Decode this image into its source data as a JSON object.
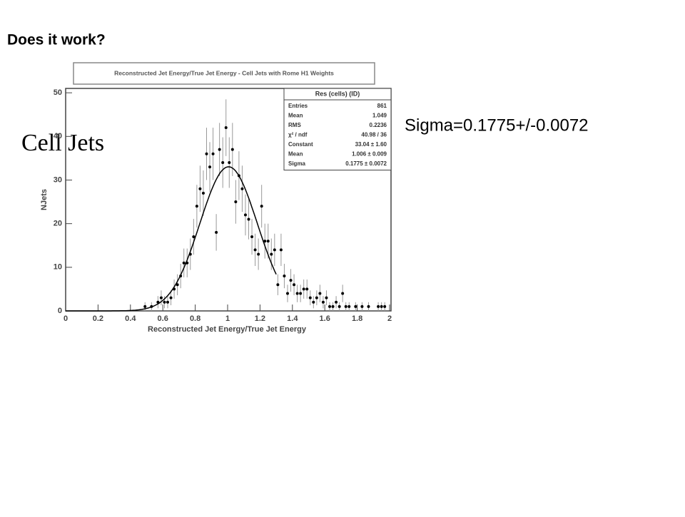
{
  "slide": {
    "title": "Does it work?",
    "label": "Cell Jets",
    "note": "Sigma=0.1775+/-0.0072"
  },
  "chart_data": {
    "type": "scatter",
    "title": "Reconstructed Jet Energy/True Jet Energy - Cell Jets with Rome H1 Weights",
    "x_label": "Reconstructed Jet Energy/True Jet Energy",
    "y_label": "NJets",
    "x": [
      0.49,
      0.53,
      0.57,
      0.59,
      0.61,
      0.63,
      0.65,
      0.67,
      0.69,
      0.71,
      0.73,
      0.75,
      0.77,
      0.79,
      0.81,
      0.83,
      0.85,
      0.87,
      0.89,
      0.91,
      0.93,
      0.95,
      0.97,
      0.99,
      1.01,
      1.03,
      1.05,
      1.07,
      1.09,
      1.11,
      1.13,
      1.15,
      1.17,
      1.19,
      1.21,
      1.23,
      1.25,
      1.27,
      1.29,
      1.31,
      1.33,
      1.35,
      1.37,
      1.39,
      1.41,
      1.43,
      1.45,
      1.47,
      1.49,
      1.51,
      1.53,
      1.55,
      1.57,
      1.59,
      1.61,
      1.63,
      1.65,
      1.67,
      1.69,
      1.71,
      1.73,
      1.75,
      1.79,
      1.83,
      1.87,
      1.93,
      1.95,
      1.97
    ],
    "series": [
      {
        "color": "#000000",
        "values": [
          1,
          1,
          2,
          3,
          2,
          2,
          3,
          5,
          6,
          8,
          11,
          11,
          13,
          17,
          24,
          28,
          27,
          36,
          33,
          36,
          18,
          37,
          34,
          42,
          34,
          37,
          25,
          31,
          28,
          22,
          21,
          17,
          14,
          13,
          24,
          16,
          16,
          13,
          14,
          6,
          14,
          8,
          4,
          7,
          6,
          4,
          4,
          5,
          5,
          3,
          2,
          3,
          4,
          2,
          3,
          1,
          1,
          2,
          1,
          4,
          1,
          1,
          1,
          1,
          1,
          1,
          1,
          1
        ],
        "errors": [
          1,
          1,
          1.4,
          1.7,
          1.4,
          1.4,
          1.7,
          2.2,
          2.4,
          2.8,
          3.3,
          3.3,
          3.6,
          4.1,
          4.9,
          5.3,
          5.2,
          6,
          5.7,
          6,
          4.2,
          6.1,
          5.8,
          6.5,
          5.8,
          6.1,
          5,
          5.6,
          5.3,
          4.7,
          4.6,
          4.1,
          3.7,
          3.6,
          4.9,
          4,
          4,
          3.6,
          3.7,
          2.4,
          3.7,
          2.8,
          2,
          2.6,
          2.4,
          2,
          2,
          2.2,
          2.2,
          1.7,
          1.4,
          1.7,
          2,
          1.4,
          1.7,
          1,
          1,
          1.4,
          1,
          2,
          1,
          1,
          1,
          1,
          1,
          1,
          1,
          1
        ]
      }
    ],
    "fit": {
      "constant": 33.04,
      "mean": 1.006,
      "sigma": 0.1775,
      "range": [
        0,
        1.3
      ],
      "color": "#000000"
    },
    "stats": {
      "title": "Res (cells) (ID)",
      "rows": [
        [
          "Entries",
          "861"
        ],
        [
          "Mean",
          "1.049"
        ],
        [
          "RMS",
          "0.2236"
        ],
        [
          "χ² / ndf",
          "40.98 / 36"
        ],
        [
          "Constant",
          "33.04 ± 1.60"
        ],
        [
          "Mean",
          "1.006 ± 0.009"
        ],
        [
          "Sigma",
          "0.1775 ± 0.0072"
        ]
      ]
    },
    "xlim": [
      0,
      2
    ],
    "ylim": [
      0,
      51
    ],
    "xticks": [
      0,
      0.2,
      0.4,
      0.6,
      0.8,
      1,
      1.2,
      1.4,
      1.6,
      1.8,
      2
    ],
    "yticks": [
      0,
      10,
      20,
      30,
      40,
      50
    ]
  }
}
